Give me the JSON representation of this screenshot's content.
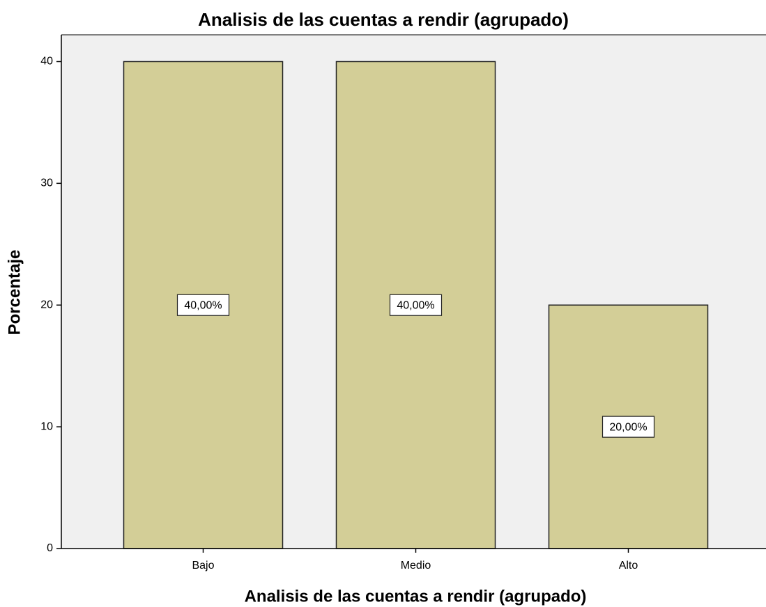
{
  "chart_data": {
    "type": "bar",
    "title": "Analisis de las cuentas a rendir (agrupado)",
    "x_label": "Analisis de las cuentas a rendir (agrupado)",
    "y_label": "Porcentaje",
    "categories": [
      "Bajo",
      "Medio",
      "Alto"
    ],
    "values": [
      40,
      40,
      20
    ],
    "value_labels": [
      "40,00%",
      "40,00%",
      "20,00%"
    ],
    "color": "#d3ce97",
    "ylim": [
      0,
      42.2
    ],
    "yticks": [
      0,
      10,
      20,
      30,
      40
    ],
    "grid": false
  }
}
